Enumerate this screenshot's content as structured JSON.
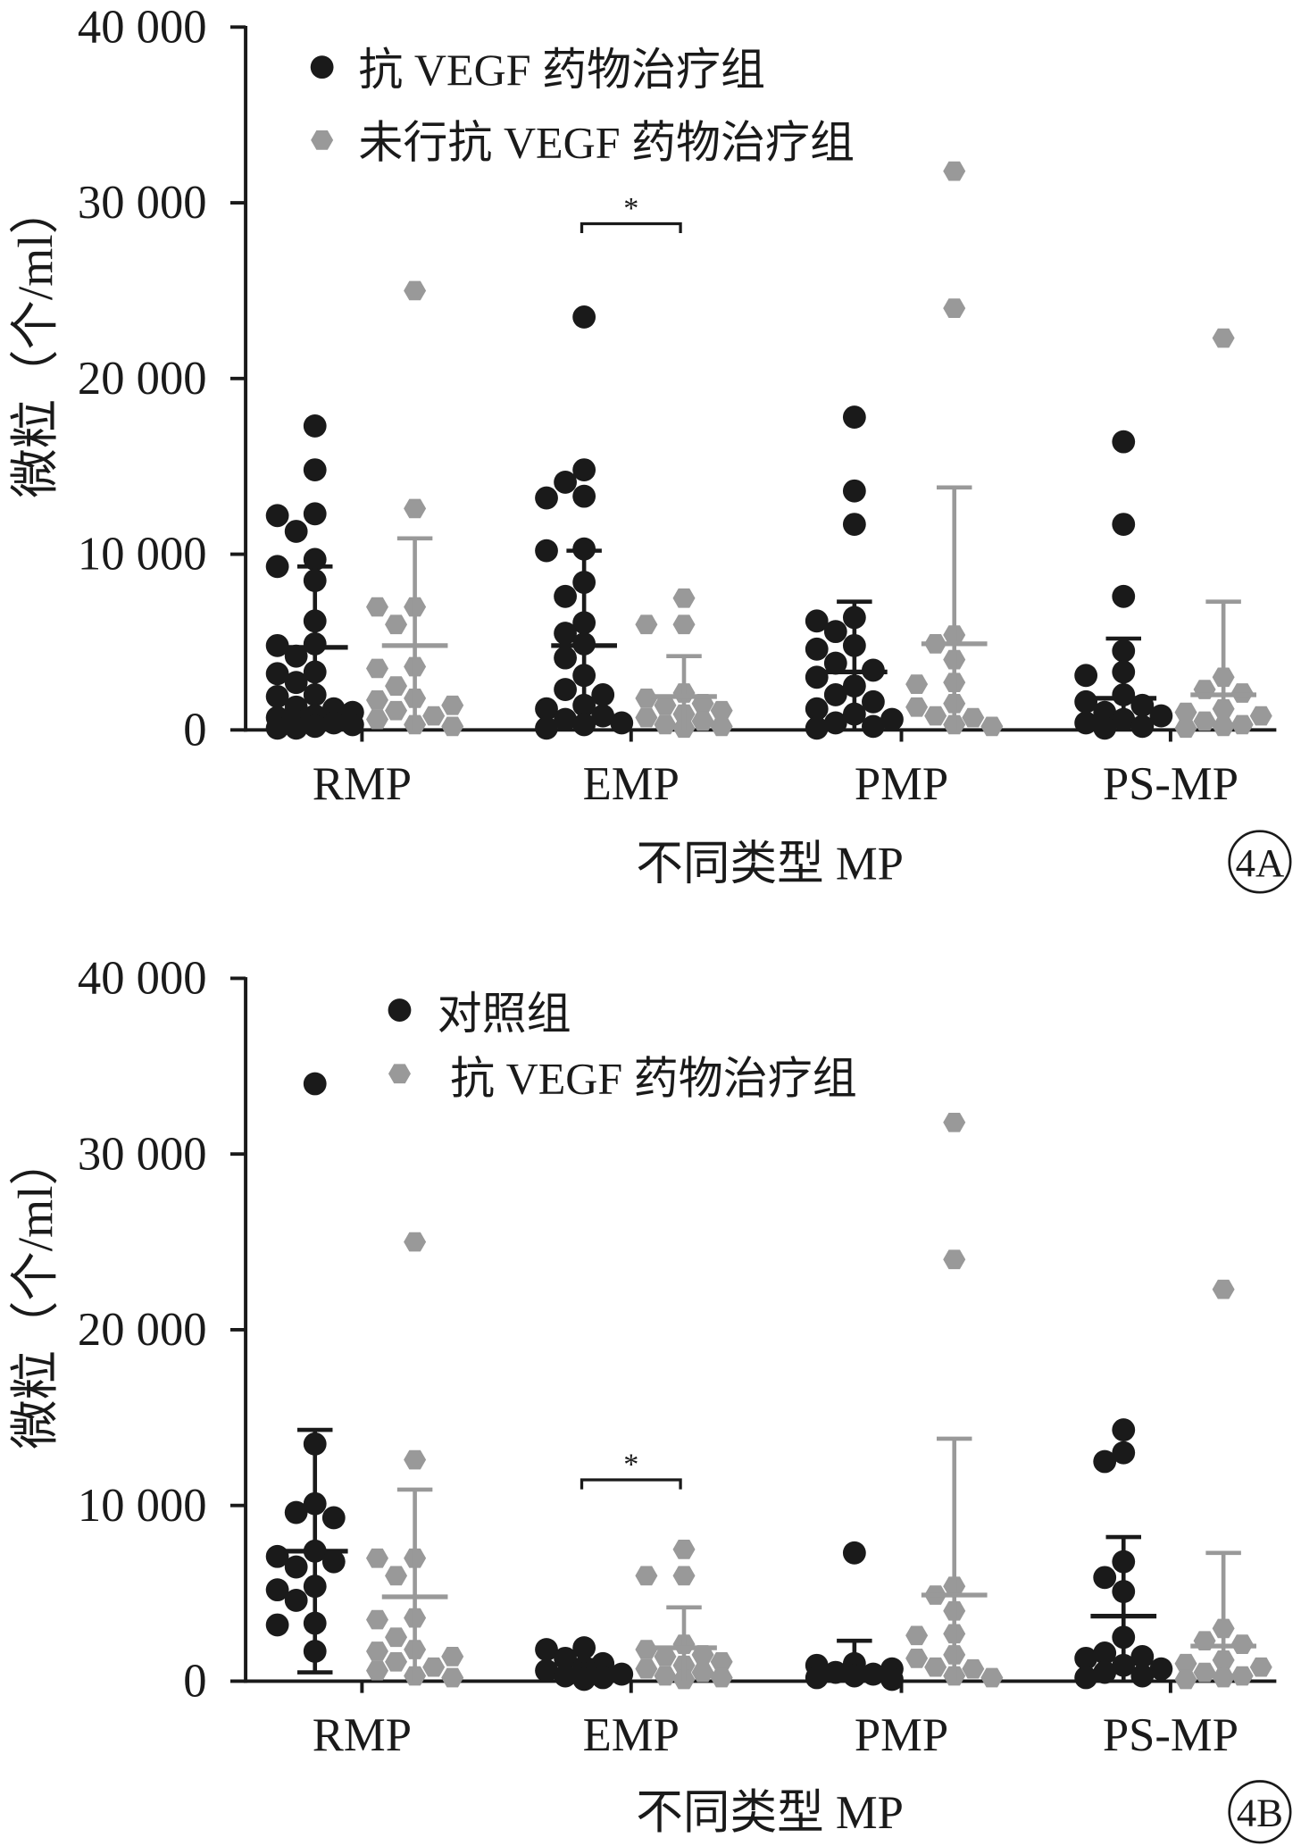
{
  "chart_data": [
    {
      "panel": "4A",
      "type": "scatter",
      "categories": [
        "RMP",
        "EMP",
        "PMP",
        "PS-MP"
      ],
      "xlabel": "不同类型 MP",
      "ylabel": "微粒（个/ml）",
      "ylim": [
        0,
        40000
      ],
      "yticks": [
        {
          "value": 0,
          "label": "0"
        },
        {
          "value": 10000,
          "label": "10 000"
        },
        {
          "value": 20000,
          "label": "20 000"
        },
        {
          "value": 30000,
          "label": "30 000"
        },
        {
          "value": 40000,
          "label": "40 000"
        }
      ],
      "grid": false,
      "legend": "top-left",
      "series": [
        {
          "name": "抗 VEGF 药物治疗组",
          "color": "#1a1a1a",
          "marker": "circle",
          "values": [
            [
              17300,
              14800,
              12300,
              12200,
              11300,
              9700,
              9300,
              8500,
              6200,
              4900,
              4800,
              4200,
              3300,
              3200,
              2700,
              2000,
              1900,
              1300,
              1200,
              1000,
              800,
              700,
              500,
              400,
              300,
              200,
              100,
              100
            ],
            [
              23500,
              14800,
              14100,
              13300,
              13200,
              10300,
              10200,
              8400,
              7600,
              6100,
              5500,
              4900,
              4100,
              3100,
              2300,
              2000,
              1400,
              1200,
              800,
              600,
              400,
              300,
              100
            ],
            [
              17800,
              13600,
              11700,
              6400,
              6200,
              5600,
              4800,
              4600,
              3800,
              3400,
              3000,
              2500,
              2000,
              1600,
              1200,
              900,
              600,
              400,
              200,
              100
            ],
            [
              16400,
              11700,
              7600,
              4500,
              3300,
              3100,
              2000,
              1600,
              1400,
              1000,
              800,
              600,
              400,
              200,
              100
            ]
          ],
          "mean": [
            4700,
            4800,
            3300,
            1800
          ],
          "sd": [
            4600,
            5400,
            4000,
            3400
          ]
        },
        {
          "name": "未行抗 VEGF 药物治疗组",
          "color": "#999999",
          "marker": "hexagon",
          "values": [
            [
              25000,
              12600,
              7000,
              7000,
              6000,
              3600,
              3500,
              2500,
              1800,
              1700,
              1400,
              1100,
              800,
              600,
              300,
              200
            ],
            [
              7500,
              6000,
              6000,
              2100,
              1800,
              1500,
              1400,
              1100,
              900,
              700,
              500,
              300,
              200,
              100
            ],
            [
              31800,
              24000,
              5400,
              4900,
              4000,
              2700,
              2600,
              1500,
              1300,
              800,
              700,
              300,
              200
            ],
            [
              22300,
              3000,
              2300,
              2100,
              1200,
              1000,
              800,
              500,
              300,
              200,
              100
            ]
          ],
          "mean": [
            4800,
            1900,
            4900,
            2000
          ],
          "sd": [
            6100,
            2300,
            8900,
            5300
          ]
        }
      ],
      "annotations": [
        {
          "category": "EMP",
          "label": "*"
        }
      ]
    },
    {
      "panel": "4B",
      "type": "scatter",
      "categories": [
        "RMP",
        "EMP",
        "PMP",
        "PS-MP"
      ],
      "xlabel": "不同类型 MP",
      "ylabel": "微粒（个/ml）",
      "ylim": [
        0,
        40000
      ],
      "yticks": [
        {
          "value": 0,
          "label": "0"
        },
        {
          "value": 10000,
          "label": "10 000"
        },
        {
          "value": 20000,
          "label": "20 000"
        },
        {
          "value": 30000,
          "label": "30 000"
        },
        {
          "value": 40000,
          "label": "40 000"
        }
      ],
      "grid": false,
      "legend": "top-left",
      "series": [
        {
          "name": "对照组",
          "color": "#1a1a1a",
          "marker": "circle",
          "values": [
            [
              34000,
              13500,
              10100,
              9600,
              9300,
              7400,
              7100,
              6800,
              6500,
              5400,
              5200,
              4600,
              3300,
              3200,
              1700
            ],
            [
              1900,
              1800,
              1300,
              1000,
              800,
              600,
              400,
              300,
              200,
              100
            ],
            [
              7300,
              1000,
              900,
              700,
              500,
              400,
              300,
              200,
              100
            ],
            [
              14300,
              13000,
              12500,
              6800,
              5900,
              5100,
              2500,
              1600,
              1400,
              1300,
              900,
              700,
              500,
              300,
              200
            ]
          ],
          "mean": [
            7400,
            600,
            700,
            3700
          ],
          "sd": [
            6900,
            600,
            1600,
            4500
          ]
        },
        {
          "name": "抗 VEGF 药物治疗组",
          "color": "#999999",
          "marker": "hexagon",
          "values": [
            [
              25000,
              12600,
              7000,
              7000,
              6000,
              3600,
              3500,
              2500,
              1800,
              1700,
              1400,
              1100,
              800,
              600,
              300,
              200
            ],
            [
              7500,
              6000,
              6000,
              2100,
              1800,
              1500,
              1400,
              1100,
              900,
              700,
              500,
              300,
              200,
              100
            ],
            [
              31800,
              24000,
              5400,
              4900,
              4000,
              2700,
              2600,
              1500,
              1300,
              800,
              700,
              300,
              200
            ],
            [
              22300,
              3000,
              2300,
              2100,
              1200,
              1000,
              800,
              500,
              300,
              200,
              100
            ]
          ],
          "mean": [
            4800,
            1900,
            4900,
            2000
          ],
          "sd": [
            6100,
            2300,
            8900,
            5300
          ]
        }
      ],
      "annotations": [
        {
          "category": "EMP",
          "label": "*"
        }
      ]
    }
  ]
}
